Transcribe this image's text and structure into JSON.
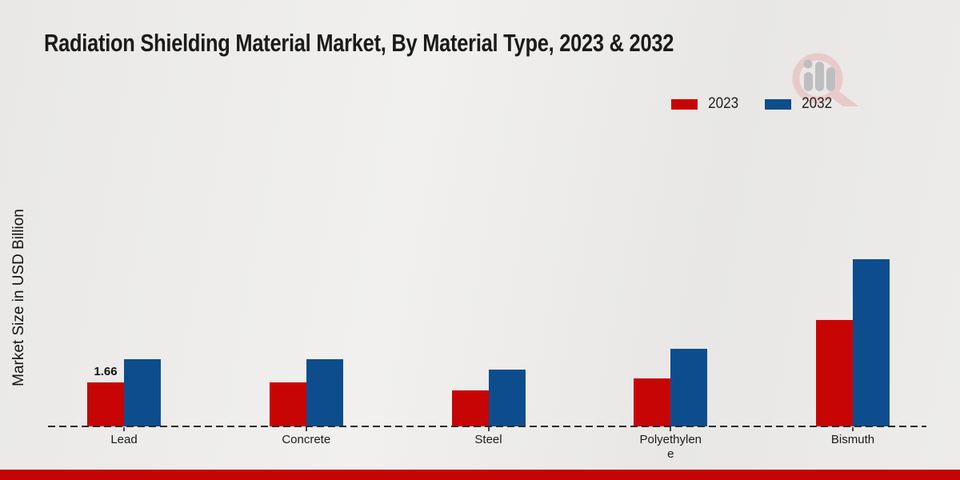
{
  "chart_data": {
    "type": "bar",
    "title": "Radiation Shielding Material Market, By Material Type, 2023 & 2032",
    "ylabel": "Market Size in USD Billion",
    "xlabel": "",
    "categories": [
      "Lead",
      "Concrete",
      "Steel",
      "Polyethylene",
      "Bismuth"
    ],
    "series": [
      {
        "name": "2023",
        "color": "#c80505",
        "values": [
          1.66,
          1.65,
          1.36,
          1.81,
          4.01
        ],
        "value_labels": [
          "1.66",
          "",
          "",
          "",
          ""
        ]
      },
      {
        "name": "2032",
        "color": "#0e4d8d",
        "values": [
          2.52,
          2.54,
          2.13,
          2.93,
          6.31
        ],
        "value_labels": [
          "",
          "",
          "",
          "",
          ""
        ]
      }
    ],
    "ylim": [
      0,
      7
    ],
    "grid": false,
    "legend_position": "top-right",
    "baseline_style": "dashed"
  },
  "accent": {
    "bottom_bar_color": "#c50404",
    "watermark_pink": "#e9c5c7",
    "watermark_gray": "#b7b7bb"
  }
}
